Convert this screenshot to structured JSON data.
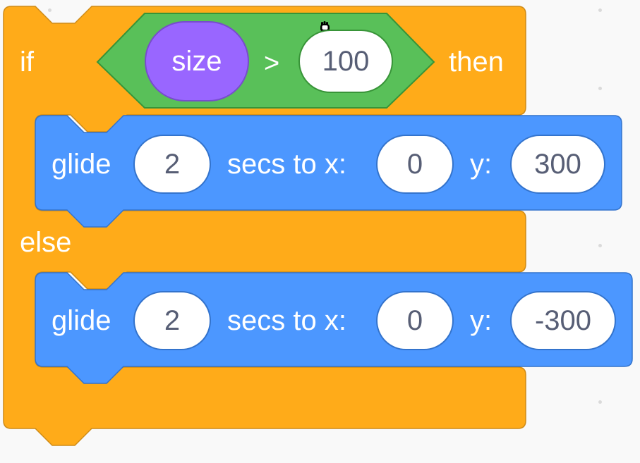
{
  "colors": {
    "background": "#F9F9F9",
    "control": "#FFAB19",
    "control_edge": "#CF8B17",
    "motion": "#4C97FF",
    "motion_edge": "#3373CC",
    "operator": "#59C059",
    "operator_edge": "#389438",
    "sensing_reporter": "#9966FF",
    "field_text": "#575E75"
  },
  "if_block": {
    "if_label": "if",
    "then_label": "then",
    "else_label": "else",
    "condition": {
      "reporter": "size",
      "operator": ">",
      "value": "100"
    }
  },
  "then_branch": {
    "verb": "glide",
    "secs": "2",
    "secs_label": "secs to x:",
    "x": "0",
    "y_label": "y:",
    "y": "300"
  },
  "else_branch": {
    "verb": "glide",
    "secs": "2",
    "secs_label": "secs to x:",
    "x": "0",
    "y_label": "y:",
    "y": "-300"
  },
  "cursor_icon": "grab-hand-icon"
}
